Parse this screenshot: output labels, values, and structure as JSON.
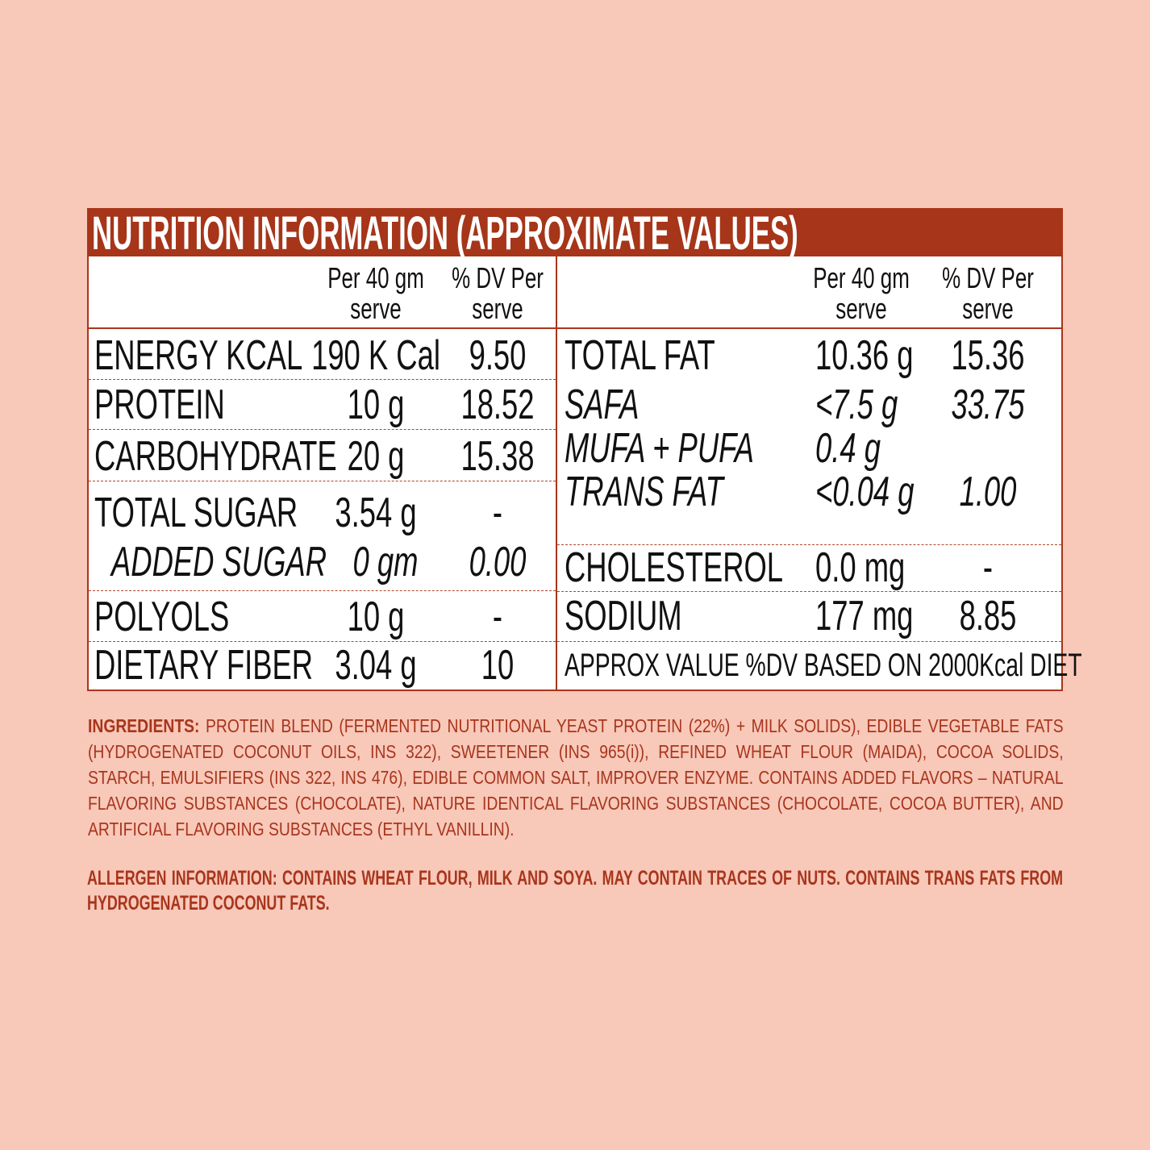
{
  "title": "NUTRITION INFORMATION (APPROXIMATE VALUES)",
  "left": {
    "header": [
      "Per 40 gm serve",
      "% DV Per serve"
    ],
    "rows": [
      [
        "ENERGY KCAL",
        "190 K Cal",
        "9.50"
      ],
      [
        "PROTEIN",
        "10 g",
        "18.52"
      ],
      [
        "CARBOHYDRATE",
        "20 g",
        "15.38"
      ],
      [
        "TOTAL SUGAR",
        "3.54 g",
        "-"
      ],
      [
        "ADDED SUGAR",
        "0 gm",
        "0.00"
      ],
      [
        "POLYOLS",
        "10 g",
        "-"
      ],
      [
        "DIETARY FIBER",
        "3.04 g",
        "10"
      ]
    ]
  },
  "right": {
    "header": [
      "Per 40 gm serve",
      "% DV Per serve"
    ],
    "rows": [
      [
        "TOTAL FAT",
        "10.36 g",
        "15.36"
      ],
      [
        "SAFA",
        "<7.5 g",
        "33.75"
      ],
      [
        "MUFA + PUFA",
        "0.4 g"
      ],
      [
        "TRANS FAT",
        "<0.04 g",
        "1.00"
      ],
      [
        "CHOLESTEROL",
        "0.0 mg",
        "-"
      ],
      [
        "SODIUM",
        "177 mg",
        "8.85"
      ]
    ],
    "note": "APPROX VALUE %DV BASED ON 2000Kcal DIET"
  },
  "ingredients": {
    "label": "INGREDIENTS:",
    "text": "PROTEIN BLEND (FERMENTED NUTRITIONAL YEAST PROTEIN (22%) + MILK SOLIDS), EDIBLE VEGETABLE FATS (HYDROGENATED COCONUT OILS, INS 322), SWEETENER (INS 965(i)), REFINED WHEAT FLOUR (MAIDA), COCOA SOLIDS, STARCH, EMULSIFIERS (INS 322, INS 476), EDIBLE COMMON SALT, IMPROVER ENZYME. CONTAINS ADDED FLAVORS – NATURAL FLAVORING SUBSTANCES (CHOCOLATE), NATURE IDENTICAL FLAVORING SUBSTANCES (CHOCOLATE, COCOA BUTTER), AND ARTIFICIAL FLAVORING SUBSTANCES (ETHYL VANILLIN)."
  },
  "allergen": "ALLERGEN INFORMATION: CONTAINS WHEAT FLOUR, MILK AND SOYA. MAY CONTAIN TRACES OF NUTS. CONTAINS TRANS FATS FROM HYDROGENATED COCONUT FATS."
}
